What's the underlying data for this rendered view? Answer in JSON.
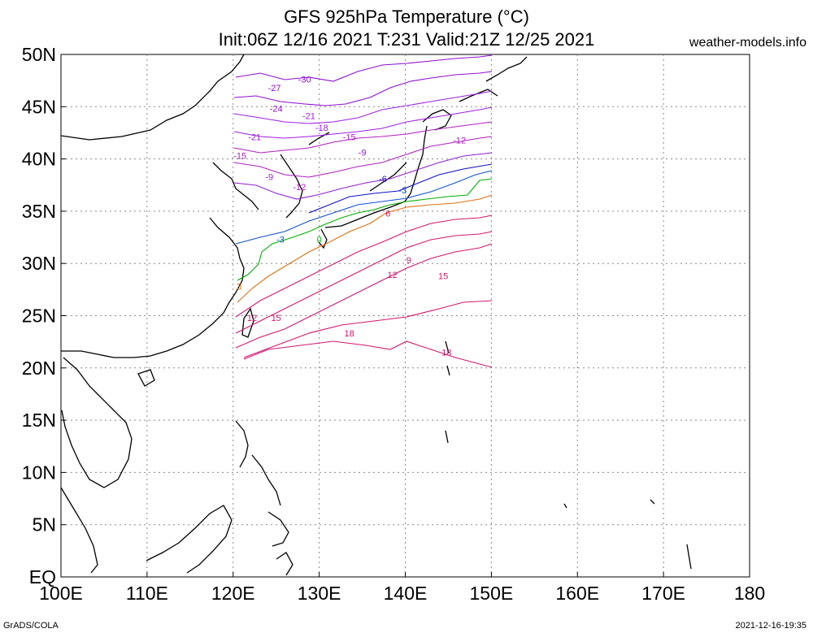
{
  "header": {
    "title_line1": "GFS 925hPa Temperature (°C)",
    "title_line2": "Init:06Z 12/16 2021 T:231 Valid:21Z 12/25 2021",
    "brand": "weather-models.info"
  },
  "footer": {
    "left": "GrADS/COLA",
    "right": "2021-12-16-19:35"
  },
  "map": {
    "lon_range": [
      100,
      180
    ],
    "lat_range": [
      0,
      50
    ],
    "x_ticks": [
      "100E",
      "110E",
      "120E",
      "130E",
      "140E",
      "150E",
      "160E",
      "170E",
      "180"
    ],
    "y_ticks": [
      "EQ",
      "5N",
      "10N",
      "15N",
      "20N",
      "25N",
      "30N",
      "35N",
      "40N",
      "45N",
      "50N"
    ],
    "grid": "dotted",
    "data_region": {
      "lon": [
        120,
        150
      ],
      "lat": [
        20,
        50
      ]
    }
  },
  "contours": [
    {
      "level": "-30",
      "color": "#8f0fd0",
      "lon": 128.3,
      "lat": 47.3
    },
    {
      "level": "-27",
      "color": "#8f0fd0",
      "lon": 124.8,
      "lat": 46.5
    },
    {
      "level": "-24",
      "color": "#8f0fd0",
      "lon": 125.0,
      "lat": 44.5
    },
    {
      "level": "-21",
      "color": "#a020e0",
      "lon": 128.8,
      "lat": 43.8
    },
    {
      "level": "-21",
      "color": "#a020e0",
      "lon": 122.5,
      "lat": 41.8
    },
    {
      "level": "-18",
      "color": "#a020e0",
      "lon": 130.3,
      "lat": 42.7
    },
    {
      "level": "-15",
      "color": "#b020c0",
      "lon": 133.5,
      "lat": 41.8
    },
    {
      "level": "-15",
      "color": "#b020c0",
      "lon": 120.8,
      "lat": 40.0
    },
    {
      "level": "-12",
      "color": "#b020c0",
      "lon": 146.3,
      "lat": 41.5
    },
    {
      "level": "-12",
      "color": "#b020c0",
      "lon": 127.7,
      "lat": 37.0
    },
    {
      "level": "-9",
      "color": "#9020d0",
      "lon": 135.0,
      "lat": 40.3
    },
    {
      "level": "-9",
      "color": "#9020d0",
      "lon": 124.2,
      "lat": 38.0
    },
    {
      "level": "-6",
      "color": "#1010c8",
      "lon": 137.4,
      "lat": 37.8
    },
    {
      "level": "-3",
      "color": "#1050d0",
      "lon": 139.7,
      "lat": 36.7
    },
    {
      "level": "-3",
      "color": "#1050d0",
      "lon": 125.5,
      "lat": 32.0
    },
    {
      "level": "0",
      "color": "#00b000",
      "lon": 130.0,
      "lat": 32.0
    },
    {
      "level": "3",
      "color": "#e07010",
      "lon": 120.7,
      "lat": 27.5
    },
    {
      "level": "6",
      "color": "#d01870",
      "lon": 138.0,
      "lat": 34.5
    },
    {
      "level": "9",
      "color": "#d01870",
      "lon": 140.4,
      "lat": 30.0
    },
    {
      "level": "12",
      "color": "#d01870",
      "lon": 138.5,
      "lat": 28.6
    },
    {
      "level": "12",
      "color": "#d01870",
      "lon": 122.2,
      "lat": 24.5
    },
    {
      "level": "15",
      "color": "#d01870",
      "lon": 144.4,
      "lat": 28.5
    },
    {
      "level": "15",
      "color": "#d01870",
      "lon": 125.0,
      "lat": 24.5
    },
    {
      "level": "18",
      "color": "#d01870",
      "lon": 133.5,
      "lat": 23.0
    },
    {
      "level": "18",
      "color": "#d01870",
      "lon": 144.8,
      "lat": 21.2
    }
  ]
}
